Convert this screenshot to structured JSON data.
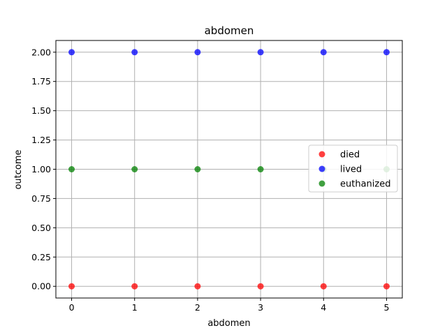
{
  "chart_data": {
    "type": "scatter",
    "title": "abdomen",
    "xlabel": "abdomen",
    "ylabel": "outcome",
    "xlim": [
      -0.25,
      5.25
    ],
    "ylim": [
      -0.1,
      2.1
    ],
    "xticks": [
      "0",
      "1",
      "2",
      "3",
      "4",
      "5"
    ],
    "yticks": [
      "0.00",
      "0.25",
      "0.50",
      "0.75",
      "1.00",
      "1.25",
      "1.50",
      "1.75",
      "2.00"
    ],
    "grid": true,
    "legend_position": "center-right",
    "series": [
      {
        "name": "died",
        "color": "#ff0000",
        "x": [
          0,
          1,
          2,
          3,
          4,
          5
        ],
        "y": [
          0,
          0,
          0,
          0,
          0,
          0
        ]
      },
      {
        "name": "lived",
        "color": "#0000ff",
        "x": [
          0,
          1,
          2,
          3,
          4,
          5
        ],
        "y": [
          2,
          2,
          2,
          2,
          2,
          2
        ]
      },
      {
        "name": "euthanized",
        "color": "#008000",
        "x": [
          0,
          1,
          2,
          3,
          4,
          5
        ],
        "y": [
          1,
          1,
          1,
          1,
          1,
          1
        ]
      }
    ]
  }
}
